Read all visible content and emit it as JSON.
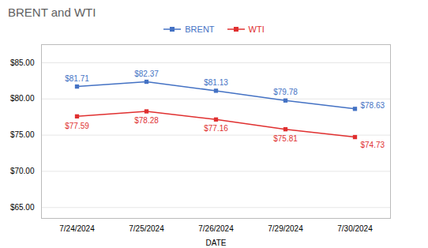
{
  "chart_data": {
    "type": "line",
    "title": "BRENT and WTI",
    "xlabel": "DATE",
    "categories": [
      "7/24/2024",
      "7/25/2024",
      "7/26/2024",
      "7/29/2024",
      "7/30/2024"
    ],
    "series": [
      {
        "name": "BRENT",
        "color": "#4472C4",
        "marker": "square",
        "line_style": "solid",
        "values": [
          81.71,
          82.37,
          81.13,
          79.78,
          78.63
        ],
        "value_labels": [
          "$81.71",
          "$82.37",
          "$81.13",
          "$79.78",
          "$78.63"
        ]
      },
      {
        "name": "WTI",
        "color": "#E03030",
        "marker": "square",
        "line_style": "solid",
        "values": [
          77.59,
          78.28,
          77.16,
          75.81,
          74.73
        ],
        "value_labels": [
          "$77.59",
          "$78.28",
          "$77.16",
          "$75.81",
          "$74.73"
        ]
      }
    ],
    "ylim": [
      63.5,
      87.5
    ],
    "yticks": [
      {
        "value": 65.0,
        "label": "$65.00"
      },
      {
        "value": 70.0,
        "label": "$70.00"
      },
      {
        "value": 75.0,
        "label": "$75.00"
      },
      {
        "value": 80.0,
        "label": "$80.00"
      },
      {
        "value": 85.0,
        "label": "$85.00"
      }
    ],
    "grid": true,
    "legend": "top",
    "data_labels": true
  }
}
